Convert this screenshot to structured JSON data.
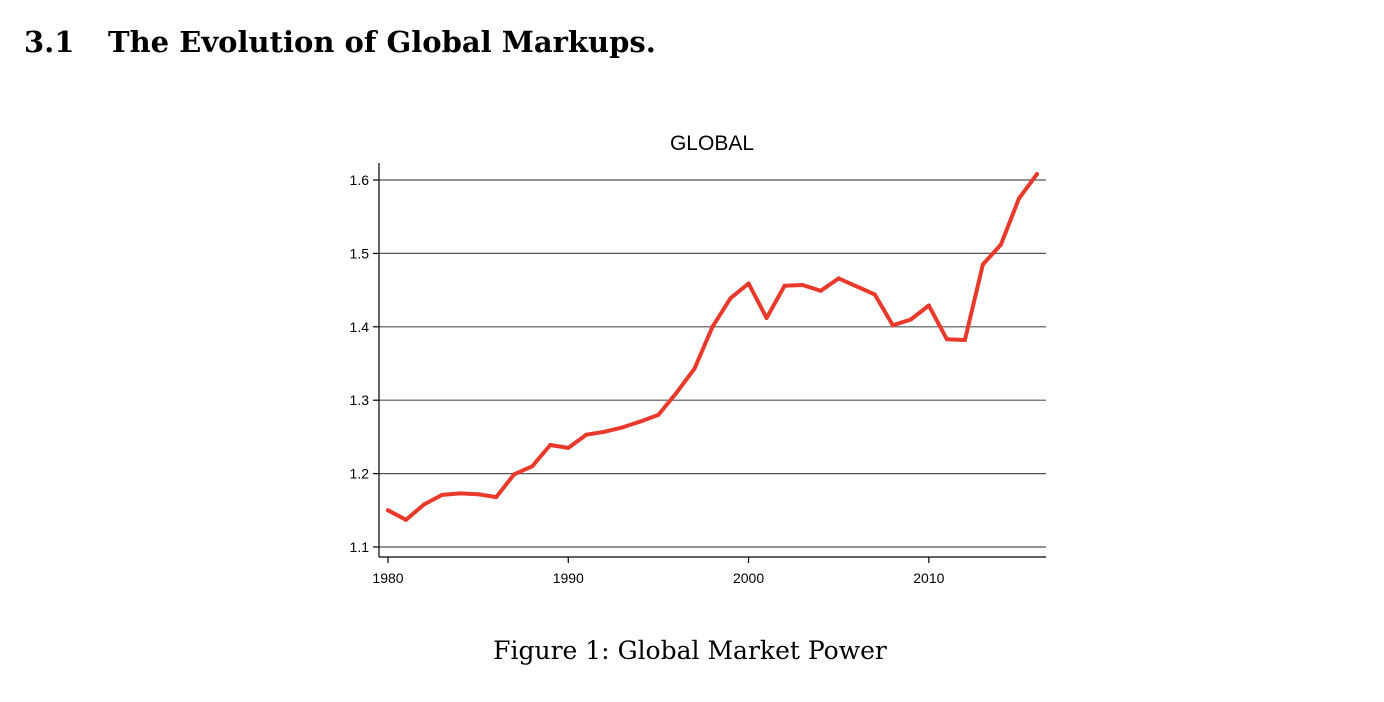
{
  "section": {
    "number": "3.1",
    "title": "The Evolution of Global Markups."
  },
  "figure": {
    "caption_label": "Figure 1:",
    "caption_text": "Global Market Power"
  },
  "chart_data": {
    "type": "line",
    "title": "GLOBAL",
    "xlabel": "",
    "ylabel": "",
    "x_ticks": [
      1980,
      1990,
      2000,
      2010
    ],
    "y_ticks": [
      1.1,
      1.2,
      1.3,
      1.4,
      1.5,
      1.6
    ],
    "y_tick_labels": [
      "1.1",
      "1.2",
      "1.3",
      "1.4",
      "1.5",
      "1.6"
    ],
    "xlim": [
      1980,
      2016
    ],
    "ylim": [
      1.1,
      1.62
    ],
    "grid": "horizontal",
    "line_color": "#e8392b",
    "grid_color": "#555555",
    "x": [
      1980,
      1981,
      1982,
      1983,
      1984,
      1985,
      1986,
      1987,
      1988,
      1989,
      1990,
      1991,
      1992,
      1993,
      1994,
      1995,
      1996,
      1997,
      1998,
      1999,
      2000,
      2001,
      2002,
      2003,
      2004,
      2005,
      2006,
      2007,
      2008,
      2009,
      2010,
      2011,
      2012,
      2013,
      2014,
      2015,
      2016
    ],
    "values": [
      1.15,
      1.137,
      1.158,
      1.171,
      1.173,
      1.172,
      1.168,
      1.199,
      1.21,
      1.239,
      1.235,
      1.253,
      1.257,
      1.263,
      1.271,
      1.28,
      1.31,
      1.343,
      1.4,
      1.439,
      1.459,
      1.412,
      1.456,
      1.457,
      1.449,
      1.466,
      1.455,
      1.444,
      1.402,
      1.41,
      1.429,
      1.383,
      1.382,
      1.485,
      1.512,
      1.575,
      1.608
    ]
  }
}
